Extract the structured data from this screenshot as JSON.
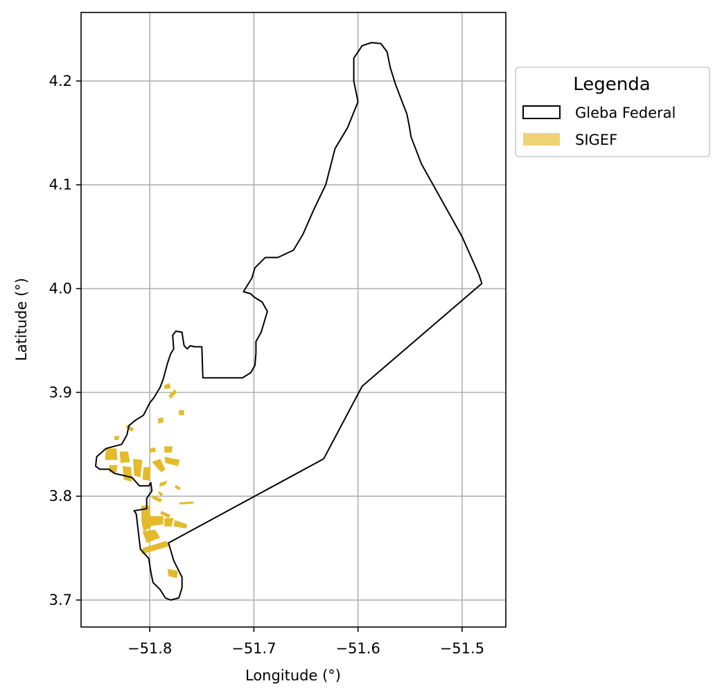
{
  "map": {
    "xlabel": "Longitude (°)",
    "ylabel": "Latitude (°)",
    "xlim": [
      -51.866,
      -51.458
    ],
    "ylim": [
      3.674,
      4.266
    ],
    "grid": true,
    "xticks": [
      {
        "value": -51.8,
        "label": "−51.8"
      },
      {
        "value": -51.7,
        "label": "−51.7"
      },
      {
        "value": -51.6,
        "label": "−51.6"
      },
      {
        "value": -51.5,
        "label": "−51.5"
      }
    ],
    "yticks": [
      {
        "value": 3.7,
        "label": "3.7"
      },
      {
        "value": 3.8,
        "label": "3.8"
      },
      {
        "value": 3.9,
        "label": "3.9"
      },
      {
        "value": 4.0,
        "label": "4.0"
      },
      {
        "value": 4.1,
        "label": "4.1"
      },
      {
        "value": 4.2,
        "label": "4.2"
      }
    ],
    "colors": {
      "gleba_edge": "#000000",
      "sigef_fill": "#e3bb2a",
      "grid": "#b0b0b0"
    }
  },
  "legend": {
    "title": "Legenda",
    "placement": "outside-top-right",
    "items": [
      {
        "label": "Gleba Federal",
        "style": "outline"
      },
      {
        "label": "SIGEF",
        "style": "fill"
      }
    ]
  },
  "gleba_federal": [
    [
      -51.587,
      4.237
    ],
    [
      -51.578,
      4.236
    ],
    [
      -51.572,
      4.228
    ],
    [
      -51.569,
      4.213
    ],
    [
      -51.564,
      4.197
    ],
    [
      -51.558,
      4.181
    ],
    [
      -51.553,
      4.168
    ],
    [
      -51.551,
      4.158
    ],
    [
      -51.549,
      4.146
    ],
    [
      -51.539,
      4.12
    ],
    [
      -51.5,
      4.05
    ],
    [
      -51.484,
      4.014
    ],
    [
      -51.481,
      4.005
    ],
    [
      -51.596,
      3.906
    ],
    [
      -51.633,
      3.836
    ],
    [
      -51.782,
      3.755
    ],
    [
      -51.777,
      3.738
    ],
    [
      -51.769,
      3.722
    ],
    [
      -51.769,
      3.712
    ],
    [
      -51.772,
      3.702
    ],
    [
      -51.78,
      3.7
    ],
    [
      -51.785,
      3.702
    ],
    [
      -51.79,
      3.71
    ],
    [
      -51.797,
      3.717
    ],
    [
      -51.799,
      3.727
    ],
    [
      -51.801,
      3.74
    ],
    [
      -51.809,
      3.749
    ],
    [
      -51.811,
      3.766
    ],
    [
      -51.813,
      3.783
    ],
    [
      -51.815,
      3.786
    ],
    [
      -51.803,
      3.788
    ],
    [
      -51.803,
      3.798
    ],
    [
      -51.798,
      3.805
    ],
    [
      -51.799,
      3.813
    ],
    [
      -51.801,
      3.81
    ],
    [
      -51.81,
      3.81
    ],
    [
      -51.817,
      3.818
    ],
    [
      -51.834,
      3.822
    ],
    [
      -51.839,
      3.826
    ],
    [
      -51.848,
      3.826
    ],
    [
      -51.852,
      3.829
    ],
    [
      -51.851,
      3.838
    ],
    [
      -51.842,
      3.846
    ],
    [
      -51.827,
      3.85
    ],
    [
      -51.822,
      3.859
    ],
    [
      -51.82,
      3.868
    ],
    [
      -51.814,
      3.873
    ],
    [
      -51.806,
      3.878
    ],
    [
      -51.8,
      3.89
    ],
    [
      -51.796,
      3.895
    ],
    [
      -51.79,
      3.905
    ],
    [
      -51.787,
      3.913
    ],
    [
      -51.783,
      3.928
    ],
    [
      -51.78,
      3.937
    ],
    [
      -51.777,
      3.942
    ],
    [
      -51.778,
      3.955
    ],
    [
      -51.775,
      3.959
    ],
    [
      -51.769,
      3.958
    ],
    [
      -51.768,
      3.951
    ],
    [
      -51.767,
      3.945
    ],
    [
      -51.764,
      3.942
    ],
    [
      -51.761,
      3.945
    ],
    [
      -51.757,
      3.944
    ],
    [
      -51.75,
      3.944
    ],
    [
      -51.749,
      3.914
    ],
    [
      -51.711,
      3.914
    ],
    [
      -51.703,
      3.919
    ],
    [
      -51.699,
      3.926
    ],
    [
      -51.698,
      3.938
    ],
    [
      -51.698,
      3.949
    ],
    [
      -51.693,
      3.958
    ],
    [
      -51.69,
      3.968
    ],
    [
      -51.687,
      3.978
    ],
    [
      -51.692,
      3.987
    ],
    [
      -51.7,
      3.992
    ],
    [
      -51.703,
      3.995
    ],
    [
      -51.71,
      3.997
    ],
    [
      -51.707,
      4.002
    ],
    [
      -51.702,
      4.01
    ],
    [
      -51.699,
      4.02
    ],
    [
      -51.689,
      4.03
    ],
    [
      -51.677,
      4.03
    ],
    [
      -51.662,
      4.037
    ],
    [
      -51.653,
      4.052
    ],
    [
      -51.642,
      4.077
    ],
    [
      -51.631,
      4.1
    ],
    [
      -51.622,
      4.135
    ],
    [
      -51.61,
      4.155
    ],
    [
      -51.6,
      4.18
    ],
    [
      -51.604,
      4.2
    ],
    [
      -51.604,
      4.222
    ],
    [
      -51.596,
      4.234
    ],
    [
      -51.587,
      4.237
    ]
  ],
  "sigef": [
    [
      [
        -51.808,
        3.791
      ],
      [
        -51.8,
        3.791
      ],
      [
        -51.799,
        3.77
      ],
      [
        -51.806,
        3.766
      ],
      [
        -51.808,
        3.776
      ]
    ],
    [
      [
        -51.802,
        3.781
      ],
      [
        -51.787,
        3.781
      ],
      [
        -51.787,
        3.773
      ],
      [
        -51.801,
        3.771
      ]
    ],
    [
      [
        -51.786,
        3.779
      ],
      [
        -51.777,
        3.779
      ],
      [
        -51.779,
        3.771
      ],
      [
        -51.786,
        3.771
      ]
    ],
    [
      [
        -51.776,
        3.777
      ],
      [
        -51.764,
        3.773
      ],
      [
        -51.765,
        3.769
      ],
      [
        -51.777,
        3.771
      ]
    ],
    [
      [
        -51.807,
        3.766
      ],
      [
        -51.795,
        3.768
      ],
      [
        -51.79,
        3.76
      ],
      [
        -51.803,
        3.755
      ]
    ],
    [
      [
        -51.807,
        3.75
      ],
      [
        -51.784,
        3.757
      ],
      [
        -51.781,
        3.752
      ],
      [
        -51.808,
        3.744
      ]
    ],
    [
      [
        -51.783,
        3.73
      ],
      [
        -51.773,
        3.728
      ],
      [
        -51.774,
        3.721
      ],
      [
        -51.782,
        3.723
      ]
    ],
    [
      [
        -51.772,
        3.794
      ],
      [
        -51.758,
        3.795
      ],
      [
        -51.758,
        3.793
      ],
      [
        -51.771,
        3.792
      ]
    ],
    [
      [
        -51.789,
        3.786
      ],
      [
        -51.78,
        3.782
      ],
      [
        -51.782,
        3.779
      ],
      [
        -51.79,
        3.783
      ]
    ],
    [
      [
        -51.842,
        3.846
      ],
      [
        -51.832,
        3.846
      ],
      [
        -51.831,
        3.835
      ],
      [
        -51.843,
        3.835
      ]
    ],
    [
      [
        -51.829,
        3.843
      ],
      [
        -51.821,
        3.843
      ],
      [
        -51.819,
        3.833
      ],
      [
        -51.828,
        3.832
      ]
    ],
    [
      [
        -51.826,
        3.829
      ],
      [
        -51.818,
        3.828
      ],
      [
        -51.817,
        3.814
      ],
      [
        -51.825,
        3.816
      ]
    ],
    [
      [
        -51.816,
        3.836
      ],
      [
        -51.807,
        3.835
      ],
      [
        -51.809,
        3.818
      ],
      [
        -51.815,
        3.82
      ]
    ],
    [
      [
        -51.806,
        3.828
      ],
      [
        -51.799,
        3.828
      ],
      [
        -51.8,
        3.815
      ],
      [
        -51.807,
        3.816
      ]
    ],
    [
      [
        -51.839,
        3.83
      ],
      [
        -51.831,
        3.83
      ],
      [
        -51.832,
        3.823
      ],
      [
        -51.839,
        3.823
      ]
    ],
    [
      [
        -51.798,
        3.833
      ],
      [
        -51.789,
        3.823
      ],
      [
        -51.785,
        3.826
      ],
      [
        -51.79,
        3.836
      ]
    ],
    [
      [
        -51.786,
        3.838
      ],
      [
        -51.771,
        3.835
      ],
      [
        -51.773,
        3.829
      ],
      [
        -51.785,
        3.832
      ]
    ],
    [
      [
        -51.786,
        3.848
      ],
      [
        -51.778,
        3.848
      ],
      [
        -51.779,
        3.842
      ],
      [
        -51.786,
        3.842
      ]
    ],
    [
      [
        -51.79,
        3.813
      ],
      [
        -51.783,
        3.815
      ],
      [
        -51.785,
        3.811
      ],
      [
        -51.791,
        3.809
      ]
    ],
    [
      [
        -51.8,
        3.846
      ],
      [
        -51.795,
        3.847
      ],
      [
        -51.794,
        3.843
      ],
      [
        -51.8,
        3.842
      ]
    ],
    [
      [
        -51.792,
        3.875
      ],
      [
        -51.787,
        3.876
      ],
      [
        -51.787,
        3.871
      ],
      [
        -51.792,
        3.87
      ]
    ],
    [
      [
        -51.772,
        3.883
      ],
      [
        -51.767,
        3.883
      ],
      [
        -51.767,
        3.878
      ],
      [
        -51.772,
        3.878
      ]
    ],
    [
      [
        -51.786,
        3.907
      ],
      [
        -51.781,
        3.909
      ],
      [
        -51.78,
        3.904
      ],
      [
        -51.786,
        3.903
      ]
    ],
    [
      [
        -51.782,
        3.897
      ],
      [
        -51.776,
        3.903
      ],
      [
        -51.774,
        3.9
      ],
      [
        -51.78,
        3.894
      ]
    ],
    [
      [
        -51.798,
        3.798
      ],
      [
        -51.79,
        3.794
      ],
      [
        -51.788,
        3.797
      ],
      [
        -51.797,
        3.801
      ]
    ],
    [
      [
        -51.775,
        3.811
      ],
      [
        -51.77,
        3.808
      ],
      [
        -51.772,
        3.806
      ],
      [
        -51.776,
        3.808
      ]
    ],
    [
      [
        -51.791,
        3.805
      ],
      [
        -51.787,
        3.802
      ],
      [
        -51.789,
        3.8
      ],
      [
        -51.792,
        3.803
      ]
    ],
    [
      [
        -51.834,
        3.858
      ],
      [
        -51.829,
        3.858
      ],
      [
        -51.83,
        3.854
      ],
      [
        -51.834,
        3.854
      ]
    ],
    [
      [
        -51.822,
        3.869
      ],
      [
        -51.815,
        3.865
      ],
      [
        -51.817,
        3.862
      ],
      [
        -51.823,
        3.866
      ]
    ]
  ]
}
